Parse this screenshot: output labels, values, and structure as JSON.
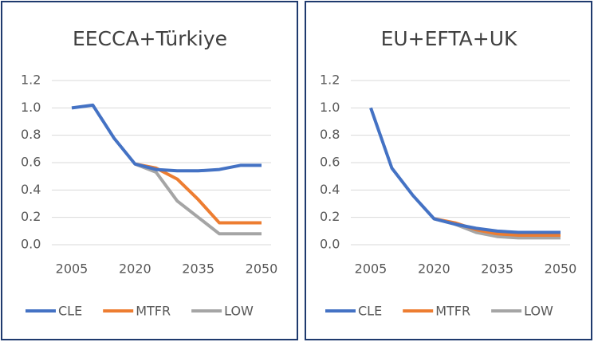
{
  "chart_data": [
    {
      "type": "line",
      "title": "EECCA+Türkiye",
      "x": [
        2005,
        2010,
        2015,
        2020,
        2025,
        2030,
        2035,
        2040,
        2045,
        2050
      ],
      "series": [
        {
          "name": "CLE",
          "color": "#4472c4",
          "values": [
            1.0,
            1.02,
            0.78,
            0.59,
            0.55,
            0.54,
            0.54,
            0.55,
            0.58,
            0.58
          ]
        },
        {
          "name": "MTFR",
          "color": "#ed7d31",
          "values": [
            null,
            null,
            null,
            0.59,
            0.56,
            0.48,
            0.33,
            0.16,
            0.16,
            0.16
          ]
        },
        {
          "name": "LOW",
          "color": "#a5a5a5",
          "values": [
            null,
            null,
            null,
            0.59,
            0.53,
            0.32,
            0.2,
            0.08,
            0.08,
            0.08
          ]
        }
      ],
      "xlim": [
        2005,
        2050
      ],
      "xticks": [
        2005,
        2020,
        2035,
        2050
      ],
      "ylim": [
        0,
        1.2
      ],
      "yticks": [
        {
          "value": 0,
          "label": "0.0"
        },
        0.2,
        0.4,
        0.6,
        0.8,
        {
          "value": 1,
          "label": "1.0"
        },
        1.2
      ],
      "grid": true,
      "legend": "bottom"
    },
    {
      "type": "line",
      "title": "EU+EFTA+UK",
      "x": [
        2005,
        2010,
        2015,
        2020,
        2025,
        2030,
        2035,
        2040,
        2045,
        2050
      ],
      "series": [
        {
          "name": "CLE",
          "color": "#4472c4",
          "values": [
            1.0,
            0.56,
            0.36,
            0.19,
            0.15,
            0.12,
            0.1,
            0.09,
            0.09,
            0.09
          ]
        },
        {
          "name": "MTFR",
          "color": "#ed7d31",
          "values": [
            null,
            null,
            null,
            0.19,
            0.16,
            0.11,
            0.08,
            0.07,
            0.07,
            0.07
          ]
        },
        {
          "name": "LOW",
          "color": "#a5a5a5",
          "values": [
            null,
            null,
            null,
            0.19,
            0.15,
            0.09,
            0.06,
            0.05,
            0.05,
            0.05
          ]
        }
      ],
      "xlim": [
        2005,
        2050
      ],
      "xticks": [
        2005,
        2020,
        2035,
        2050
      ],
      "ylim": [
        0,
        1.2
      ],
      "yticks": [
        {
          "value": 0,
          "label": "0.0"
        },
        0.2,
        0.4,
        0.6,
        0.8,
        {
          "value": 1,
          "label": "1.0"
        },
        1.2
      ],
      "grid": true,
      "legend": "bottom"
    }
  ]
}
